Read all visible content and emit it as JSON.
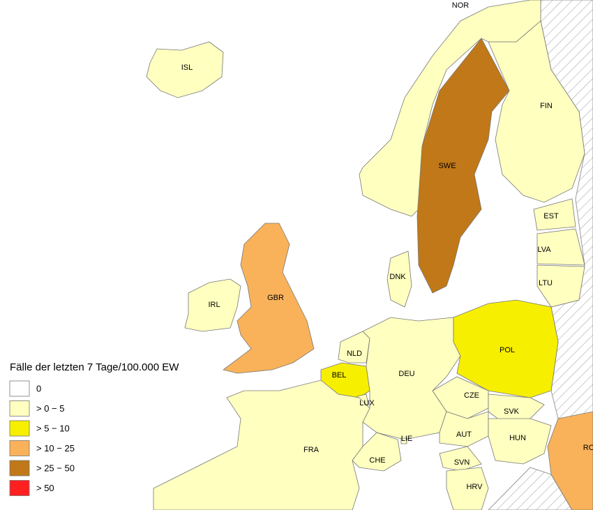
{
  "legend": {
    "title": "Fälle der letzten 7 Tage/100.000 EW",
    "items": [
      {
        "label": "0",
        "color": "#ffffff"
      },
      {
        "label": "> 0 − 5",
        "color": "#ffffc0"
      },
      {
        "label": "> 5 − 10",
        "color": "#f7ef00"
      },
      {
        "label": "> 10 − 25",
        "color": "#f9b25a"
      },
      {
        "label": "> 25 − 50",
        "color": "#c07818"
      },
      {
        "label": "> 50",
        "color": "#ff2020"
      }
    ]
  },
  "countries": [
    {
      "code": "NOR",
      "class": 1
    },
    {
      "code": "ISL",
      "class": 1
    },
    {
      "code": "FIN",
      "class": 1
    },
    {
      "code": "SWE",
      "class": 4
    },
    {
      "code": "EST",
      "class": 1
    },
    {
      "code": "LVA",
      "class": 1
    },
    {
      "code": "LTU",
      "class": 1
    },
    {
      "code": "DNK",
      "class": 1
    },
    {
      "code": "GBR",
      "class": 3
    },
    {
      "code": "IRL",
      "class": 1
    },
    {
      "code": "NLD",
      "class": 1
    },
    {
      "code": "BEL",
      "class": 2
    },
    {
      "code": "LUX",
      "class": 1
    },
    {
      "code": "DEU",
      "class": 1
    },
    {
      "code": "POL",
      "class": 2
    },
    {
      "code": "CZE",
      "class": 1
    },
    {
      "code": "SVK",
      "class": 1
    },
    {
      "code": "AUT",
      "class": 1
    },
    {
      "code": "HUN",
      "class": 1
    },
    {
      "code": "FRA",
      "class": 1
    },
    {
      "code": "CHE",
      "class": 1
    },
    {
      "code": "LIE",
      "class": 1
    },
    {
      "code": "SVN",
      "class": 1
    },
    {
      "code": "HRV",
      "class": 1
    },
    {
      "code": "RO",
      "class": 3
    }
  ]
}
